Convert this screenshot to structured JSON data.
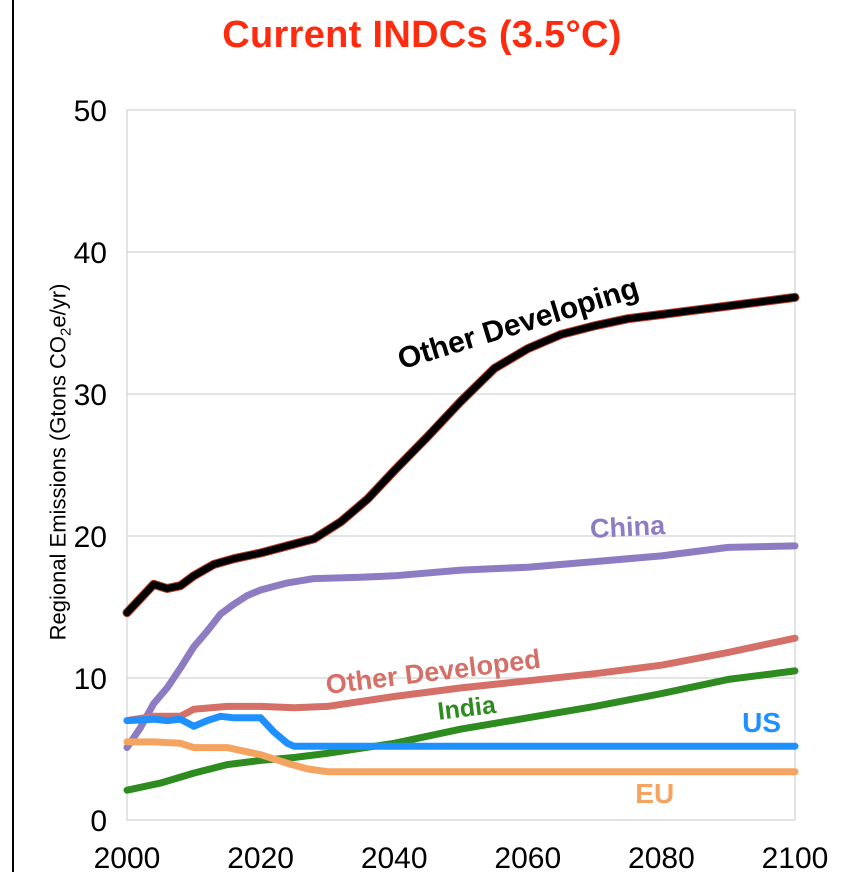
{
  "chart_data": {
    "type": "line",
    "title": "Current INDCs (3.5°C)",
    "ylabel_prefix": "Regional Emissions (Gtons CO",
    "ylabel_sub": "2",
    "ylabel_suffix": "e/yr)",
    "xlim": [
      2000,
      2100
    ],
    "ylim": [
      0,
      50
    ],
    "x_ticks": [
      2000,
      2020,
      2040,
      2060,
      2080,
      2100
    ],
    "y_ticks": [
      0,
      10,
      20,
      30,
      40,
      50
    ],
    "grid": "horizontal",
    "series": [
      {
        "name": "Other Developing",
        "color": "#000000",
        "points": [
          [
            2000,
            14.6
          ],
          [
            2002,
            15.6
          ],
          [
            2004,
            16.6
          ],
          [
            2006,
            16.3
          ],
          [
            2008,
            16.5
          ],
          [
            2010,
            17.2
          ],
          [
            2013,
            18.0
          ],
          [
            2016,
            18.4
          ],
          [
            2020,
            18.8
          ],
          [
            2024,
            19.3
          ],
          [
            2028,
            19.8
          ],
          [
            2032,
            21.0
          ],
          [
            2036,
            22.6
          ],
          [
            2040,
            24.6
          ],
          [
            2045,
            27.0
          ],
          [
            2050,
            29.5
          ],
          [
            2055,
            31.8
          ],
          [
            2060,
            33.2
          ],
          [
            2065,
            34.2
          ],
          [
            2070,
            34.8
          ],
          [
            2075,
            35.3
          ],
          [
            2080,
            35.6
          ],
          [
            2085,
            35.9
          ],
          [
            2090,
            36.2
          ],
          [
            2095,
            36.5
          ],
          [
            2100,
            36.8
          ]
        ]
      },
      {
        "name": "China",
        "color": "#8e7cc3",
        "points": [
          [
            2000,
            5.1
          ],
          [
            2002,
            6.5
          ],
          [
            2004,
            8.2
          ],
          [
            2006,
            9.3
          ],
          [
            2008,
            10.7
          ],
          [
            2010,
            12.2
          ],
          [
            2012,
            13.3
          ],
          [
            2014,
            14.5
          ],
          [
            2016,
            15.2
          ],
          [
            2018,
            15.8
          ],
          [
            2020,
            16.2
          ],
          [
            2024,
            16.7
          ],
          [
            2028,
            17.0
          ],
          [
            2035,
            17.1
          ],
          [
            2040,
            17.2
          ],
          [
            2050,
            17.6
          ],
          [
            2060,
            17.8
          ],
          [
            2070,
            18.2
          ],
          [
            2080,
            18.6
          ],
          [
            2090,
            19.2
          ],
          [
            2100,
            19.3
          ]
        ]
      },
      {
        "name": "Other Developed",
        "color": "#d47068",
        "points": [
          [
            2000,
            7.0
          ],
          [
            2004,
            7.3
          ],
          [
            2008,
            7.3
          ],
          [
            2010,
            7.8
          ],
          [
            2015,
            8.0
          ],
          [
            2020,
            8.0
          ],
          [
            2025,
            7.9
          ],
          [
            2030,
            8.0
          ],
          [
            2040,
            8.7
          ],
          [
            2050,
            9.3
          ],
          [
            2060,
            9.8
          ],
          [
            2070,
            10.3
          ],
          [
            2080,
            10.9
          ],
          [
            2090,
            11.8
          ],
          [
            2100,
            12.8
          ]
        ]
      },
      {
        "name": "India",
        "color": "#2e8b1f",
        "points": [
          [
            2000,
            2.1
          ],
          [
            2005,
            2.6
          ],
          [
            2010,
            3.3
          ],
          [
            2015,
            3.9
          ],
          [
            2020,
            4.2
          ],
          [
            2025,
            4.4
          ],
          [
            2030,
            4.7
          ],
          [
            2040,
            5.4
          ],
          [
            2050,
            6.4
          ],
          [
            2060,
            7.2
          ],
          [
            2070,
            8.0
          ],
          [
            2080,
            8.9
          ],
          [
            2090,
            9.9
          ],
          [
            2100,
            10.5
          ]
        ]
      },
      {
        "name": "US",
        "color": "#1e90ff",
        "points": [
          [
            2000,
            7.0
          ],
          [
            2004,
            7.1
          ],
          [
            2006,
            7.0
          ],
          [
            2008,
            7.1
          ],
          [
            2010,
            6.6
          ],
          [
            2012,
            7.0
          ],
          [
            2014,
            7.3
          ],
          [
            2016,
            7.2
          ],
          [
            2020,
            7.2
          ],
          [
            2022,
            6.2
          ],
          [
            2024,
            5.4
          ],
          [
            2025,
            5.2
          ],
          [
            2030,
            5.2
          ],
          [
            2050,
            5.2
          ],
          [
            2075,
            5.2
          ],
          [
            2100,
            5.2
          ]
        ]
      },
      {
        "name": "EU",
        "color": "#f4a460",
        "points": [
          [
            2000,
            5.5
          ],
          [
            2004,
            5.5
          ],
          [
            2008,
            5.4
          ],
          [
            2010,
            5.1
          ],
          [
            2015,
            5.1
          ],
          [
            2020,
            4.6
          ],
          [
            2024,
            4.0
          ],
          [
            2027,
            3.6
          ],
          [
            2030,
            3.4
          ],
          [
            2040,
            3.4
          ],
          [
            2060,
            3.4
          ],
          [
            2080,
            3.4
          ],
          [
            2100,
            3.4
          ]
        ]
      }
    ],
    "labels": [
      {
        "series": "Other Developing",
        "text": "Other Developing",
        "x": 2059,
        "y": 34.3,
        "angle": -17,
        "size": 30
      },
      {
        "series": "China",
        "text": "China",
        "x": 2075,
        "y": 20.0,
        "angle": -3,
        "size": 27
      },
      {
        "series": "Other Developed",
        "text": "Other Developed",
        "x": 2046,
        "y": 9.8,
        "angle": -7,
        "size": 27
      },
      {
        "series": "India",
        "text": "India",
        "x": 2051,
        "y": 7.3,
        "angle": -7,
        "size": 25
      },
      {
        "series": "US",
        "text": "US",
        "x": 2095,
        "y": 6.2,
        "angle": 0,
        "size": 28
      },
      {
        "series": "EU",
        "text": "EU",
        "x": 2079,
        "y": 1.2,
        "angle": 0,
        "size": 28
      }
    ]
  }
}
